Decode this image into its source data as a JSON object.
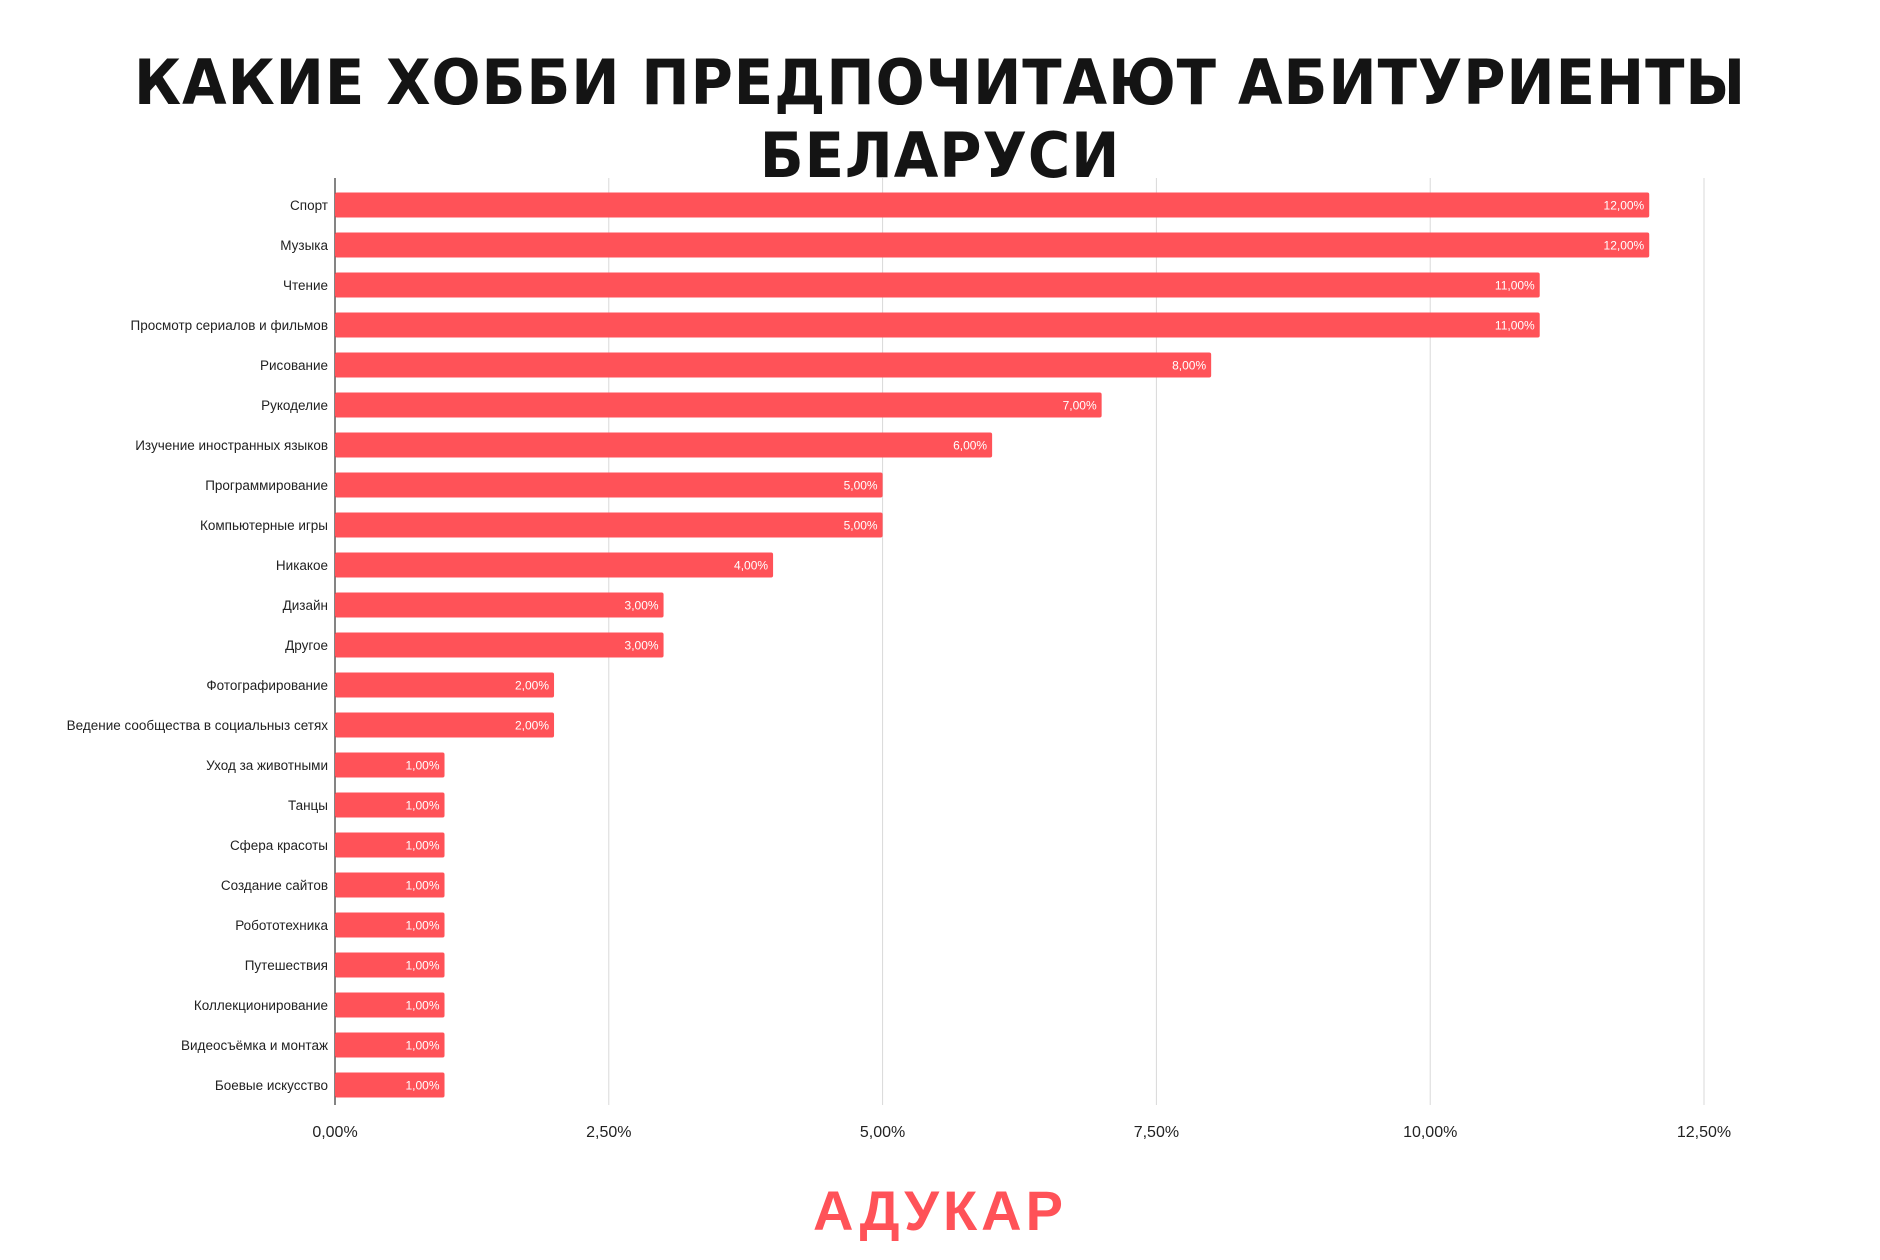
{
  "title": "КАКИЕ ХОББИ ПРЕДПОЧИТАЮТ АБИТУРИЕНТЫ БЕЛАРУСИ",
  "logo": "АДУКАР",
  "colors": {
    "bar": "#ff5258",
    "logo": "#ff5258",
    "grid": "#d9d9d9",
    "axis": "#333333"
  },
  "chart_data": {
    "type": "bar",
    "orientation": "horizontal",
    "title": "КАКИЕ ХОББИ ПРЕДПОЧИТАЮТ АБИТУРИЕНТЫ БЕЛАРУСИ",
    "xlabel": "",
    "ylabel": "",
    "xlim": [
      0,
      12.5
    ],
    "grid": true,
    "x_ticks": [
      0,
      2.5,
      5,
      7.5,
      10,
      12.5
    ],
    "x_tick_labels": [
      "0,00%",
      "2,50%",
      "5,00%",
      "7,50%",
      "10,00%",
      "12,50%"
    ],
    "categories": [
      "Спорт",
      "Музыка",
      "Чтение",
      "Просмотр сериалов и фильмов",
      "Рисование",
      "Рукоделие",
      "Изучение иностранных языков",
      "Программирование",
      "Компьютерные игры",
      "Никакое",
      "Дизайн",
      "Другое",
      "Фотографирование",
      "Ведение сообщества в социальныз сетях",
      "Уход за животными",
      "Танцы",
      "Сфера красоты",
      "Создание сайтов",
      "Робототехника",
      "Путешествия",
      "Коллекционирование",
      "Видеосъёмка и монтаж",
      "Боевые искусство"
    ],
    "values": [
      12,
      12,
      11,
      11,
      8,
      7,
      6,
      5,
      5,
      4,
      3,
      3,
      2,
      2,
      1,
      1,
      1,
      1,
      1,
      1,
      1,
      1,
      1
    ],
    "value_labels": [
      "12,00%",
      "12,00%",
      "11,00%",
      "11,00%",
      "8,00%",
      "7,00%",
      "6,00%",
      "5,00%",
      "5,00%",
      "4,00%",
      "3,00%",
      "3,00%",
      "2,00%",
      "2,00%",
      "1,00%",
      "1,00%",
      "1,00%",
      "1,00%",
      "1,00%",
      "1,00%",
      "1,00%",
      "1,00%",
      "1,00%"
    ]
  }
}
